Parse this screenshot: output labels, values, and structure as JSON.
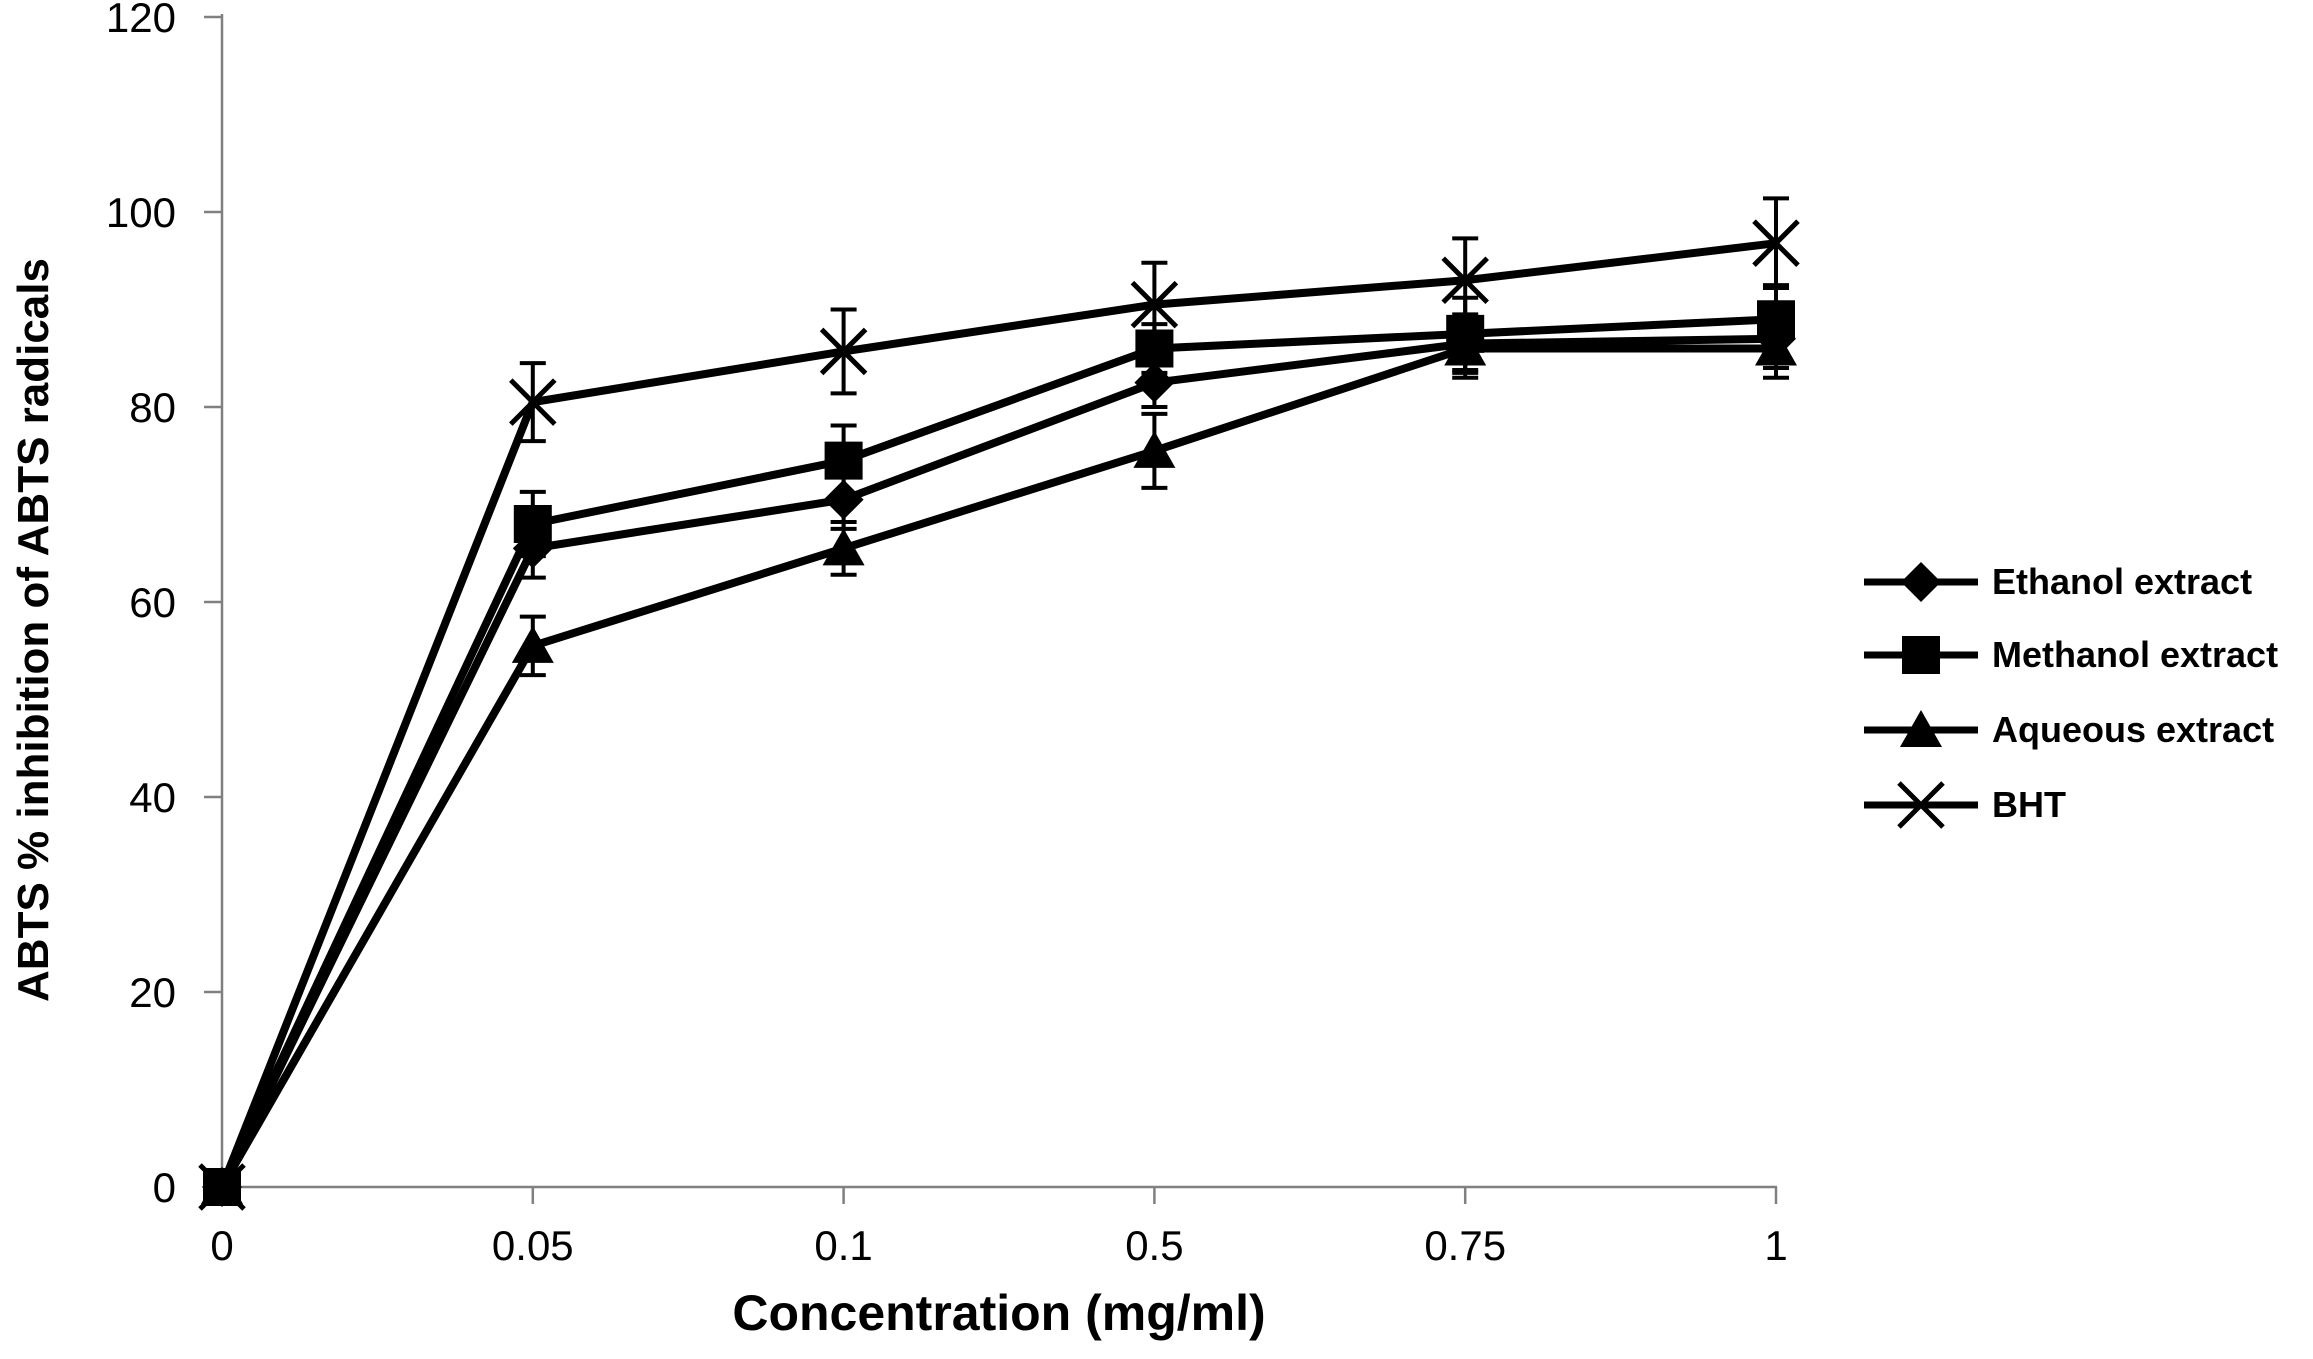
{
  "figure": {
    "background_color": "#ffffff",
    "axis_color": "#808080",
    "series_color": "#000000",
    "text_color": "#000000"
  },
  "chart_data": {
    "type": "line",
    "title": "",
    "xlabel": "Concentration (mg/ml)",
    "ylabel": "ABTS % inhibition of ABTS radicals",
    "categories": [
      0,
      0.05,
      0.1,
      0.5,
      0.75,
      1
    ],
    "x_tick_labels": [
      "0",
      "0.05",
      "0.1",
      "0.5",
      "0.75",
      "1"
    ],
    "y_ticks": [
      0,
      20,
      40,
      60,
      80,
      100,
      120
    ],
    "ylim": [
      0,
      120
    ],
    "grid": false,
    "legend_position": "right",
    "error_bars": true,
    "series": [
      {
        "name": "Ethanol extract",
        "marker": "diamond",
        "values": [
          0,
          65.5,
          70.5,
          82.5,
          86.5,
          87
        ],
        "errors": [
          0,
          3,
          3,
          2.5,
          3,
          3
        ]
      },
      {
        "name": "Methanol extract",
        "marker": "square",
        "values": [
          0,
          68,
          74.5,
          86,
          87.5,
          89
        ],
        "errors": [
          0,
          3.3,
          3.6,
          2.5,
          3.7,
          3.5
        ]
      },
      {
        "name": "Aqueous extract",
        "marker": "triangle",
        "values": [
          0,
          55.5,
          65.5,
          75.5,
          86,
          86
        ],
        "errors": [
          0,
          3,
          2.7,
          3.8,
          3,
          3
        ]
      },
      {
        "name": "BHT",
        "marker": "x",
        "values": [
          0,
          80.5,
          85.7,
          90.5,
          93,
          96.8
        ],
        "errors": [
          0,
          4,
          4.3,
          4.3,
          4.3,
          4.6
        ]
      }
    ]
  }
}
